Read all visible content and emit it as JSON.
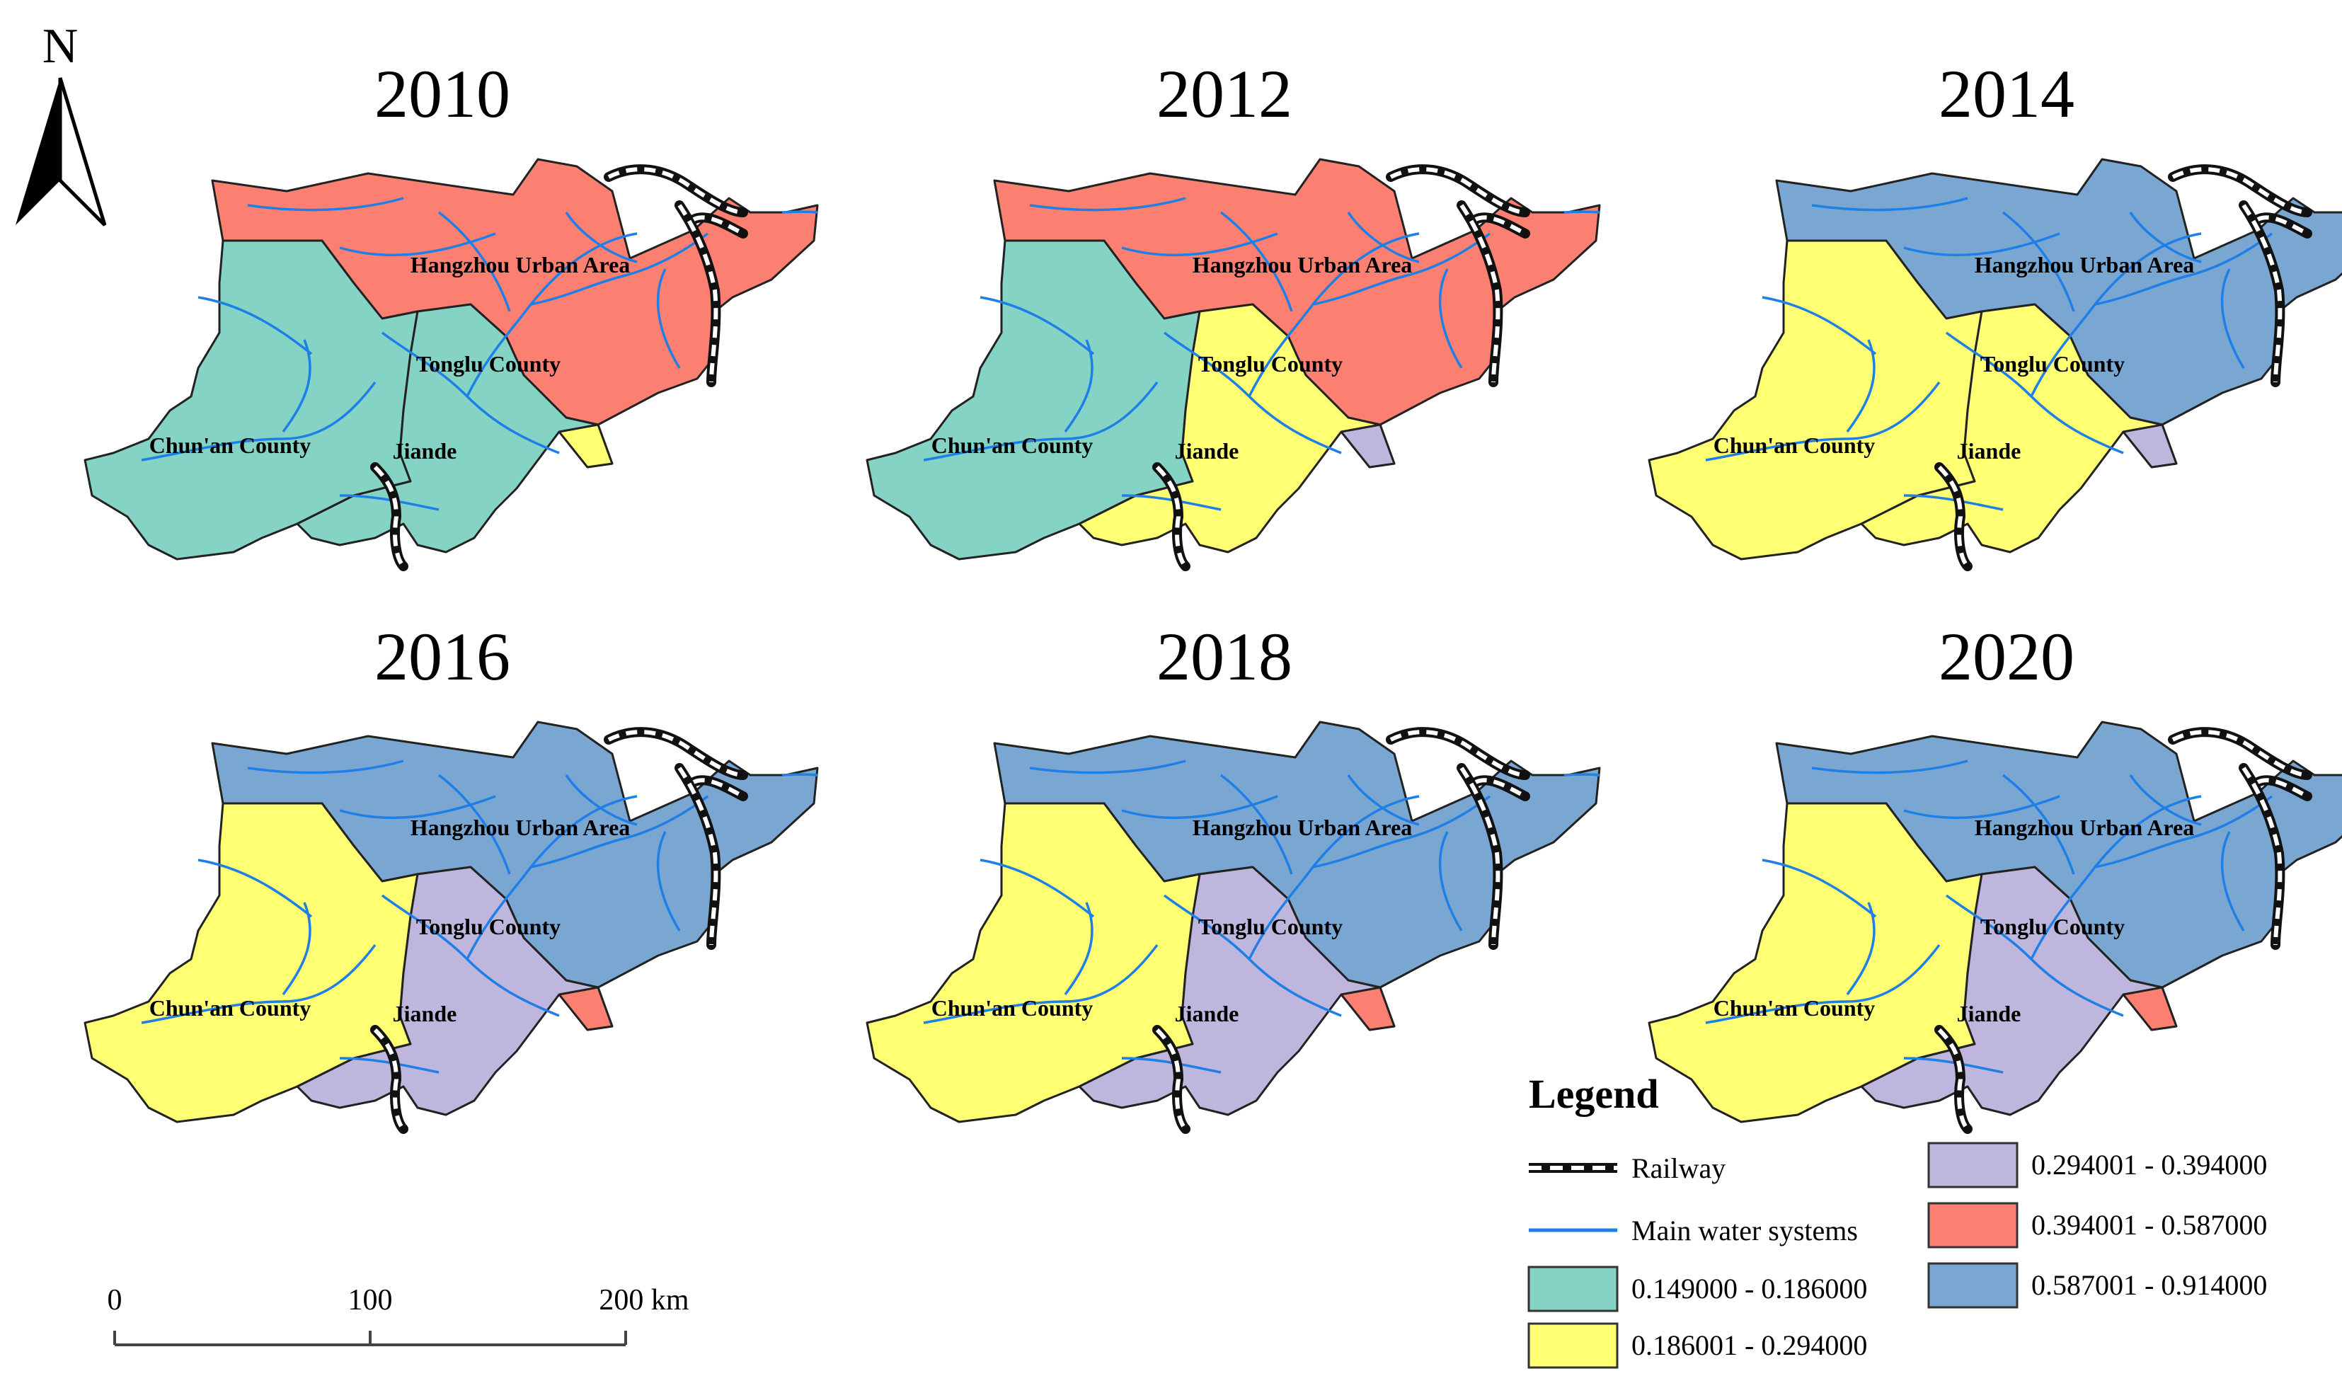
{
  "north": {
    "label": "N"
  },
  "colors": {
    "class1": "#85d3c4",
    "class2": "#ffff73",
    "class3": "#beb6dc",
    "class4": "#fb8072",
    "class5": "#7aa6d2",
    "water": "#1e7fe6",
    "outline": "#222222"
  },
  "region_labels": {
    "urban": "Hangzhou Urban Area",
    "tonglu": "Tonglu County",
    "chunan": "Chun'an County",
    "jiande": "Jiande"
  },
  "maps": [
    {
      "year": "2010",
      "classes": {
        "urban": "class4",
        "tonglu": "class2",
        "chunan": "class1",
        "jiande": "class1"
      }
    },
    {
      "year": "2012",
      "classes": {
        "urban": "class4",
        "tonglu": "class3",
        "chunan": "class1",
        "jiande": "class2"
      }
    },
    {
      "year": "2014",
      "classes": {
        "urban": "class5",
        "tonglu": "class3",
        "chunan": "class2",
        "jiande": "class2"
      }
    },
    {
      "year": "2016",
      "classes": {
        "urban": "class5",
        "tonglu": "class4",
        "chunan": "class2",
        "jiande": "class3"
      }
    },
    {
      "year": "2018",
      "classes": {
        "urban": "class5",
        "tonglu": "class4",
        "chunan": "class2",
        "jiande": "class3"
      }
    },
    {
      "year": "2020",
      "classes": {
        "urban": "class5",
        "tonglu": "class4",
        "chunan": "class2",
        "jiande": "class3"
      }
    }
  ],
  "legend": {
    "title": "Legend",
    "railway": "Railway",
    "water": "Main water systems",
    "classes": [
      {
        "key": "class1",
        "range": "0.149000 - 0.186000"
      },
      {
        "key": "class2",
        "range": "0.186001 - 0.294000"
      },
      {
        "key": "class3",
        "range": "0.294001 - 0.394000"
      },
      {
        "key": "class4",
        "range": "0.394001 - 0.587000"
      },
      {
        "key": "class5",
        "range": "0.587001 - 0.914000"
      }
    ]
  },
  "scale_bar": {
    "labels": [
      "0",
      "100",
      "200 km"
    ]
  }
}
